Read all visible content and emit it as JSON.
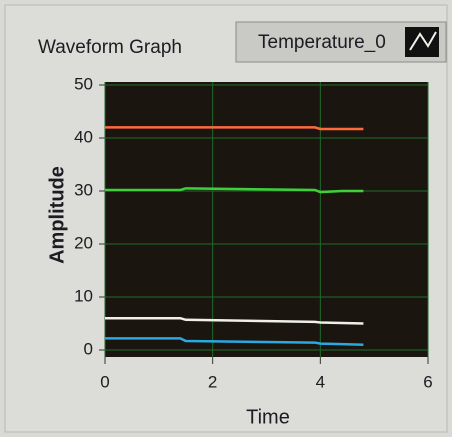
{
  "chart_data": {
    "type": "line",
    "title": "Waveform Graph",
    "x_label": "Time",
    "y_label": "Amplitude",
    "x": [
      0,
      1.4,
      1.5,
      3.9,
      4.0,
      4.4,
      4.8
    ],
    "series": [
      {
        "color": "#ff6a3d",
        "values": [
          42,
          42,
          42,
          42,
          41.7,
          41.7,
          41.7
        ]
      },
      {
        "color": "#3fcf3a",
        "values": [
          30.2,
          30.2,
          30.5,
          30.2,
          29.8,
          30,
          30
        ]
      },
      {
        "name": "Temperature_0",
        "color": "#f0efe8",
        "values": [
          6,
          6,
          5.7,
          5.3,
          5.2,
          5.1,
          5
        ]
      },
      {
        "color": "#2aa8e0",
        "values": [
          2.2,
          2.2,
          1.7,
          1.4,
          1.2,
          1.1,
          1
        ]
      }
    ],
    "xlim": [
      0,
      6
    ],
    "xticks": [
      0,
      2,
      4,
      6
    ],
    "ylim": [
      0,
      50
    ],
    "yticks": [
      0,
      10,
      20,
      30,
      40,
      50
    ],
    "grid": true
  }
}
